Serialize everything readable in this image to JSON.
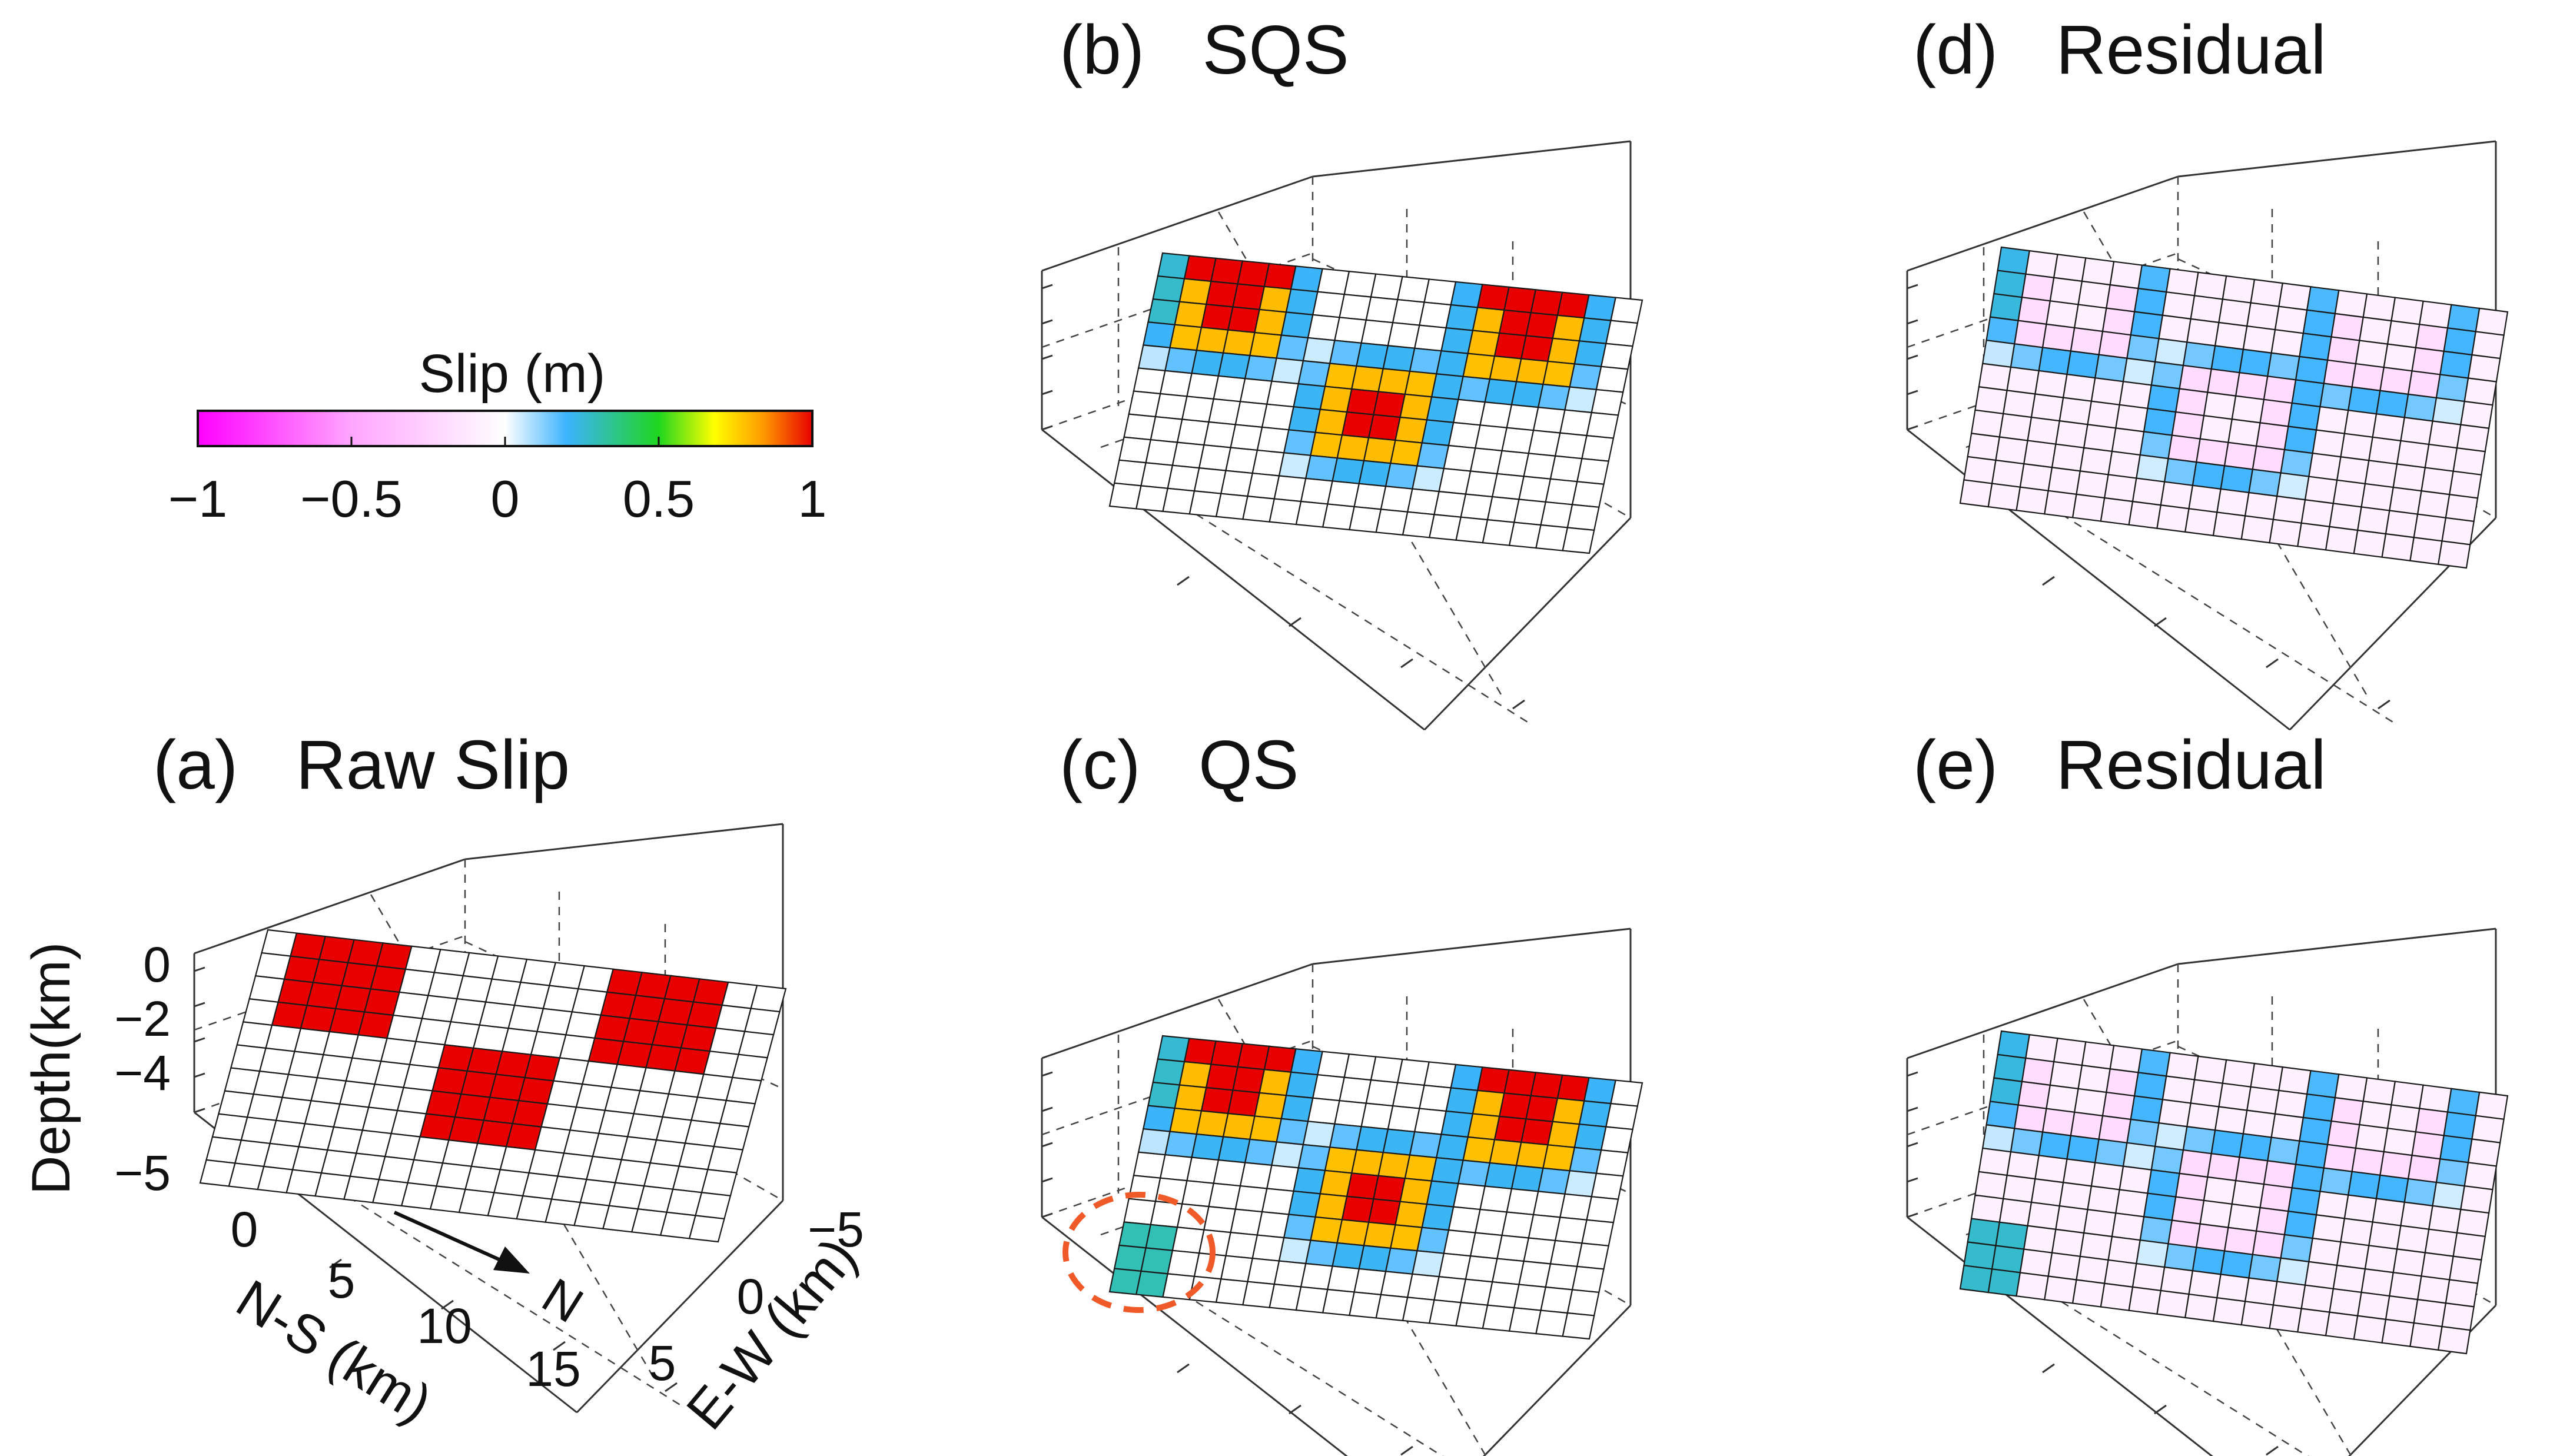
{
  "chart_data": [
    {
      "id": "a",
      "type": "heatmap",
      "title": "(a)   Raw Slip",
      "label": "(a)",
      "name": "Raw Slip",
      "zlabel": "Depth(km)",
      "xlabel": "N-S (km)",
      "ylabel": "E-W (km)",
      "zticks": [
        "0",
        "−2",
        "−4",
        "−5"
      ],
      "xticks": [
        "0",
        "5",
        "10",
        "15"
      ],
      "yticks": [
        "−5",
        "0",
        "5"
      ],
      "north_label": "N",
      "clim": [
        -1,
        1
      ],
      "patches": [
        {
          "name": "asperity-1",
          "rows": [
            0,
            4
          ],
          "cols": [
            1,
            5
          ],
          "slip": 1.0
        },
        {
          "name": "asperity-2",
          "rows": [
            0,
            4
          ],
          "cols": [
            12,
            16
          ],
          "slip": 1.0
        },
        {
          "name": "asperity-3",
          "rows": [
            4,
            8
          ],
          "cols": [
            7,
            11
          ],
          "slip": 1.0
        }
      ]
    },
    {
      "id": "b",
      "type": "heatmap",
      "title": "(b)   SQS",
      "label": "(b)",
      "name": "SQS",
      "clim": [
        -1,
        1
      ],
      "patches": [
        {
          "name": "asperity-1",
          "rows": [
            0,
            4
          ],
          "cols": [
            1,
            5
          ],
          "slip": 1.0
        },
        {
          "name": "asperity-2",
          "rows": [
            0,
            4
          ],
          "cols": [
            12,
            16
          ],
          "slip": 1.0
        },
        {
          "name": "asperity-3",
          "rows": [
            4,
            8
          ],
          "cols": [
            7,
            11
          ],
          "slip": 1.0
        }
      ],
      "smoothing": "blurred"
    },
    {
      "id": "c",
      "type": "heatmap",
      "title": "(c)   QS",
      "label": "(c)",
      "name": "QS",
      "clim": [
        -1,
        1
      ],
      "patches": [
        {
          "name": "asperity-1",
          "rows": [
            0,
            4
          ],
          "cols": [
            1,
            5
          ],
          "slip": 1.0
        },
        {
          "name": "asperity-2",
          "rows": [
            0,
            4
          ],
          "cols": [
            12,
            16
          ],
          "slip": 1.0
        },
        {
          "name": "asperity-3",
          "rows": [
            4,
            8
          ],
          "cols": [
            7,
            11
          ],
          "slip": 1.0
        }
      ],
      "smoothing": "blurred",
      "artifact": {
        "rows": [
          8,
          11
        ],
        "cols": [
          0,
          2
        ],
        "slip": 0.3,
        "highlighted": true
      }
    },
    {
      "id": "d",
      "type": "heatmap",
      "title": "(d)   Residual",
      "label": "(d)",
      "name": "Residual",
      "clim": [
        -1,
        1
      ],
      "residual_of": "b"
    },
    {
      "id": "e",
      "type": "heatmap",
      "title": "(e)   Residual",
      "label": "(e)",
      "name": "Residual",
      "clim": [
        -1,
        1
      ],
      "residual_of": "c"
    }
  ],
  "colorbar": {
    "title": "Slip (m)",
    "ticks": [
      "−1",
      "−0.5",
      "0",
      "0.5",
      "1"
    ],
    "tick_values": [
      -1,
      -0.5,
      0,
      0.5,
      1
    ],
    "colors": [
      "#ff00ff",
      "#ff9fff",
      "#ffffff",
      "#3cb3ff",
      "#1fd61f",
      "#ffff00",
      "#ff9a00",
      "#e80000"
    ]
  },
  "grid": {
    "rows": 11,
    "cols": 18
  }
}
